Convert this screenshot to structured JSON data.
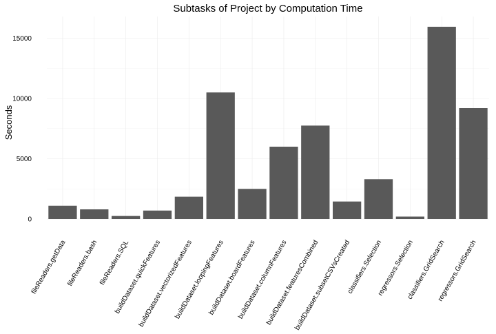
{
  "chart_data": {
    "type": "bar",
    "title": "Subtasks of Project by Computation Time",
    "xlabel": "",
    "ylabel": "Seconds",
    "ylim": [
      0,
      16800
    ],
    "yticks": [
      0,
      5000,
      10000,
      15000
    ],
    "grid": true,
    "legend": "none",
    "bar_color": "#595959",
    "categories": [
      "fileReaders.getData",
      "fileReaders.bash",
      "fileReaders.SQL",
      "buildDataset.quickFeatures",
      "buildDataset.vectorizedFeatures",
      "buildDataset.loopingFeatures",
      "buildDataset.boardFeatures",
      "buildDataset.columnFeatures",
      "buildDataset.featuresCombined",
      "buildDataset.subsetCSVsCreated",
      "classifiers.Selection",
      "regressors.Selection",
      "classifiers.GridSearch",
      "regressors.GridSearch"
    ],
    "values": [
      1100,
      800,
      250,
      700,
      1850,
      10500,
      2500,
      6000,
      7750,
      1450,
      3300,
      200,
      15950,
      9200
    ]
  }
}
